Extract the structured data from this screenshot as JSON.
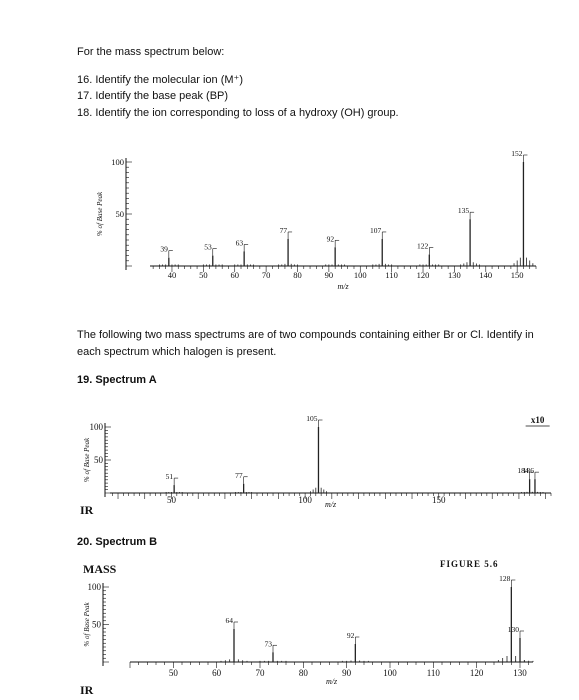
{
  "intro": "For the mass spectrum below:",
  "questions": [
    "16. Identify the molecular ion (M⁺)",
    "17. Identify the base peak (BP)",
    "18. Identify the ion corresponding to loss of a hydroxy (OH) group."
  ],
  "halogen_prompt_line1": "The following two mass spectrums are of two compounds containing either Br or Cl. Identify in",
  "halogen_prompt_line2": "each spectrum which halogen is present.",
  "spectrumA_heading": "19. Spectrum A",
  "spectrumB_heading": "20. Spectrum B",
  "ir_label_a": "IR",
  "ir_label_b": "IR",
  "mass_label": "MASS",
  "figure_caption": "FIGURE 5.6",
  "zoom_label": "x10",
  "colors": {
    "ink": "#111111",
    "peak": "#222222"
  },
  "chart_data": [
    {
      "type": "bar",
      "ylabel": "% of Base Peak",
      "xlabel": "m/z",
      "xlim": [
        33,
        156
      ],
      "ylim": [
        0,
        100
      ],
      "xticks": [
        40,
        50,
        60,
        70,
        80,
        90,
        100,
        110,
        120,
        130,
        140,
        150
      ],
      "yticks": [
        50,
        100
      ],
      "x": [
        39,
        53,
        63,
        77,
        92,
        107,
        122,
        135,
        152
      ],
      "values": [
        8,
        10,
        14,
        26,
        18,
        26,
        11,
        45,
        100
      ],
      "peak_labels": [
        "39",
        "53",
        "63",
        "77",
        "92",
        "107",
        "122",
        "135",
        "152"
      ]
    },
    {
      "type": "bar",
      "ylabel": "% of Base Peak",
      "xlabel": "m/z",
      "xlim": [
        27,
        192
      ],
      "ylim": [
        0,
        100
      ],
      "xticks": [
        50,
        100,
        150
      ],
      "yticks": [
        50,
        100
      ],
      "x": [
        51,
        77,
        105,
        184,
        186
      ],
      "values": [
        12,
        14,
        100,
        21,
        21
      ],
      "peak_labels": [
        "51",
        "77",
        "105",
        "184",
        "186"
      ]
    },
    {
      "type": "bar",
      "ylabel": "% of Base Peak",
      "xlabel": "m/z",
      "xlim": [
        40,
        133
      ],
      "ylim": [
        0,
        100
      ],
      "xticks": [
        50,
        60,
        70,
        80,
        90,
        100,
        110,
        120,
        130
      ],
      "yticks": [
        50,
        100
      ],
      "x": [
        64,
        73,
        92,
        128,
        130
      ],
      "values": [
        44,
        13,
        24,
        100,
        32
      ],
      "peak_labels": [
        "64",
        "73",
        "92",
        "128",
        "130"
      ]
    }
  ]
}
